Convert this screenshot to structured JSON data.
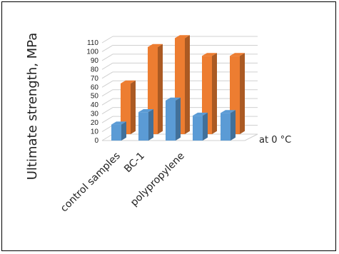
{
  "chart_data": {
    "type": "bar",
    "style": "3d-clustered-column",
    "ylabel": "Ultimate strength, MPa",
    "ylim": [
      0,
      110
    ],
    "yticks": [
      0,
      10,
      20,
      30,
      40,
      50,
      60,
      70,
      80,
      90,
      100,
      110
    ],
    "categories": [
      "",
      "",
      "",
      "",
      ""
    ],
    "axis_labels": [
      "control samples",
      "BC-1",
      "polypropylene"
    ],
    "series": [
      {
        "name": "",
        "color": "#5B9BD5",
        "values": [
          18,
          32,
          45,
          28,
          31
        ]
      },
      {
        "name": "",
        "color": "#ED7D31",
        "values": [
          57,
          98,
          108,
          88,
          88
        ]
      }
    ],
    "legend_text": "at 0 °C",
    "grid": true,
    "legend_position": "right"
  }
}
